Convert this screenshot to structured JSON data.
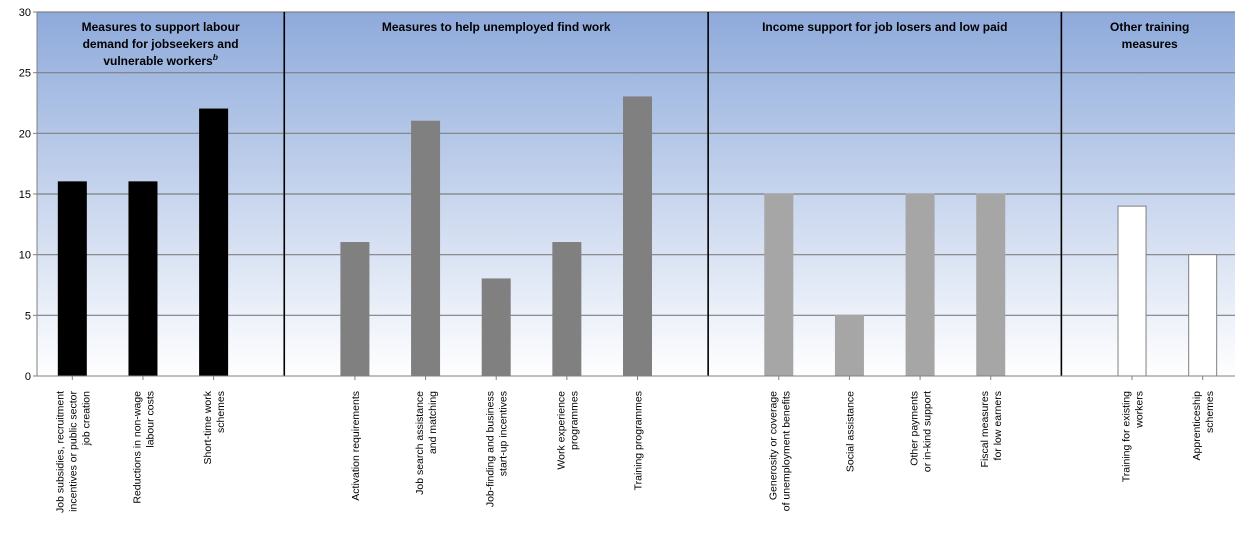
{
  "chart_data": {
    "type": "bar",
    "ylim": [
      0,
      30
    ],
    "yticks": [
      0,
      5,
      10,
      15,
      20,
      25,
      30
    ],
    "grid": true,
    "groups": [
      {
        "title_lines": [
          "Measures to support labour",
          "demand for jobseekers and",
          "vulnerable workers"
        ],
        "title_sup": "b",
        "bar_color": "#000000",
        "bar_stroke": "#000000",
        "categories": [
          {
            "label_lines": [
              "Job subsidies, recruitment",
              "incentives or public sector",
              "job creation"
            ],
            "value": 16
          },
          {
            "label_lines": [
              "Reductions in non-wage",
              "labour costs"
            ],
            "value": 16
          },
          {
            "label_lines": [
              "Short-time work",
              "schemes"
            ],
            "value": 22
          }
        ]
      },
      {
        "title_lines": [
          "Measures to help unemployed find work"
        ],
        "title_sup": "",
        "bar_color": "#808080",
        "bar_stroke": "#808080",
        "categories": [
          {
            "label_lines": [
              "Activation requirements"
            ],
            "value": 11
          },
          {
            "label_lines": [
              "Job search assistance",
              "and matching"
            ],
            "value": 21
          },
          {
            "label_lines": [
              "Job-finding and business",
              "start-up incentives"
            ],
            "value": 8
          },
          {
            "label_lines": [
              "Work experience",
              "programmes"
            ],
            "value": 11
          },
          {
            "label_lines": [
              "Training programmes"
            ],
            "value": 23
          }
        ]
      },
      {
        "title_lines": [
          "Income support for job losers and low paid"
        ],
        "title_sup": "",
        "bar_color": "#a6a6a6",
        "bar_stroke": "#a6a6a6",
        "categories": [
          {
            "label_lines": [
              "Generosity or coverage",
              "of unemployment benefits"
            ],
            "value": 15
          },
          {
            "label_lines": [
              "Social assistance"
            ],
            "value": 5
          },
          {
            "label_lines": [
              "Other payments",
              "or in-kind support"
            ],
            "value": 15
          },
          {
            "label_lines": [
              "Fiscal measures",
              "for low earners"
            ],
            "value": 15
          }
        ]
      },
      {
        "title_lines": [
          "Other training",
          "measures"
        ],
        "title_sup": "",
        "bar_color": "#ffffff",
        "bar_stroke": "#808080",
        "categories": [
          {
            "label_lines": [
              "Training for existing",
              "workers"
            ],
            "value": 14
          },
          {
            "label_lines": [
              "Apprenticeship",
              "schemes"
            ],
            "value": 10
          }
        ]
      }
    ]
  },
  "colors": {
    "background_top": "#8eaadb",
    "background_bottom": "#ffffff",
    "gridline": "#808080",
    "divider": "#000000"
  }
}
